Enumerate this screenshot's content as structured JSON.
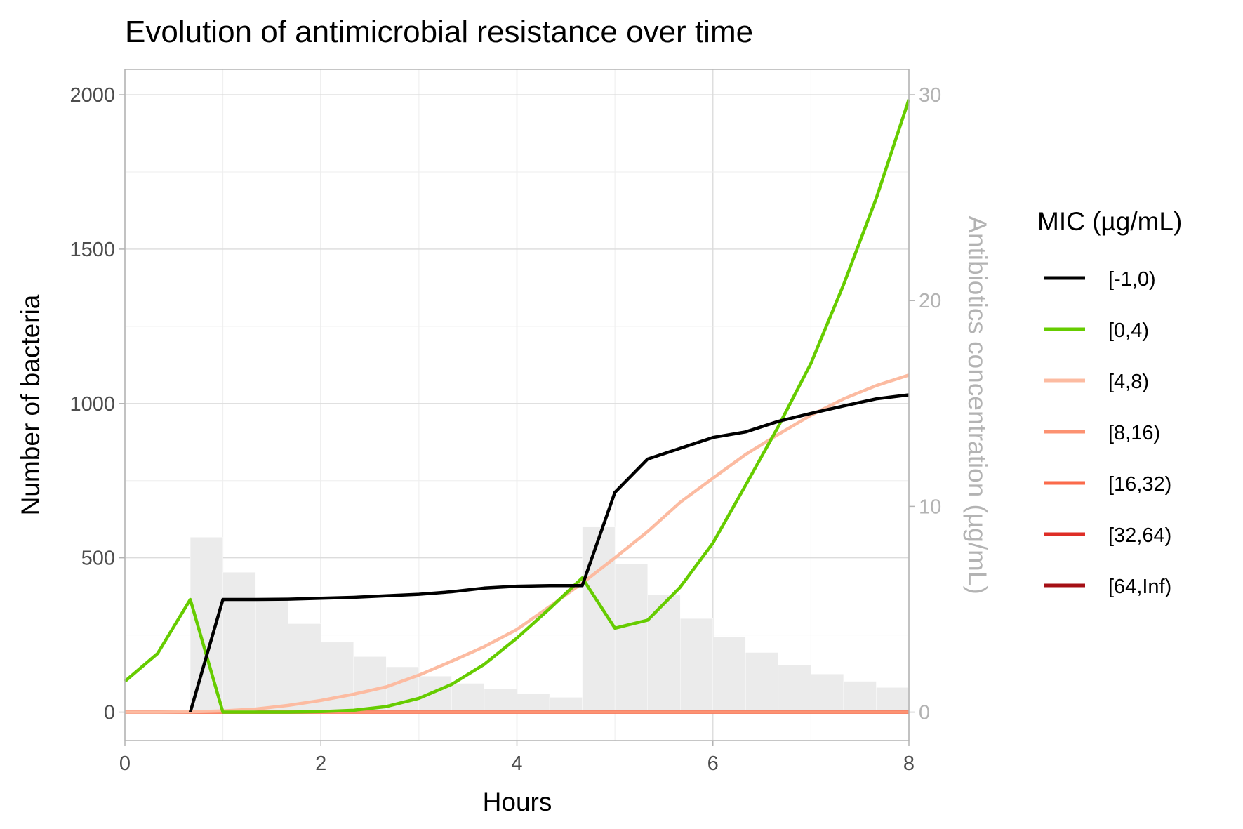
{
  "chart_data": {
    "type": "line",
    "title": "Evolution of antimicrobial resistance over time",
    "xlabel": "Hours",
    "ylabel": "Number of bacteria",
    "y2label": "Antibiotics concentration (µg/mL)",
    "xlim": [
      0,
      8
    ],
    "ylim": [
      -92,
      2082
    ],
    "y2lim": [
      -1.38,
      31.23
    ],
    "x_ticks": [
      0,
      2,
      4,
      6,
      8
    ],
    "y_ticks": [
      0,
      500,
      1000,
      1500,
      2000
    ],
    "y2_ticks": [
      0,
      10,
      20,
      30
    ],
    "grid": true,
    "legend_title": "MIC (µg/mL)",
    "legend_position": "right",
    "bar_color": "#ebebeb",
    "antibiotic_bars": {
      "width": 0.3333,
      "x": [
        0.8333,
        1.1667,
        1.5,
        1.8333,
        2.1667,
        2.5,
        2.8333,
        3.1667,
        3.5,
        3.8333,
        4.1667,
        4.5,
        4.8333,
        5.1667,
        5.5,
        5.8333,
        6.1667,
        6.5,
        6.8333,
        7.1667,
        7.5,
        7.8333
      ],
      "values": [
        8.5,
        6.8,
        5.5,
        4.3,
        3.4,
        2.7,
        2.2,
        1.75,
        1.4,
        1.12,
        0.9,
        0.72,
        9.0,
        7.2,
        5.7,
        4.55,
        3.65,
        2.9,
        2.3,
        1.85,
        1.5,
        1.2
      ]
    },
    "series": [
      {
        "name": "[-1,0)",
        "color": "#000000",
        "x": [
          0.6667,
          1,
          1.3333,
          1.6667,
          2,
          2.3333,
          2.6667,
          3,
          3.3333,
          3.6667,
          4,
          4.3333,
          4.6667,
          5,
          5.3333,
          5.6667,
          6,
          6.3333,
          6.6667,
          7,
          7.3333,
          7.6667,
          8
        ],
        "values": [
          0,
          365,
          365,
          366,
          369,
          372,
          377,
          382,
          390,
          402,
          408,
          410,
          410,
          712,
          820,
          855,
          890,
          908,
          942,
          968,
          992,
          1015,
          1028
        ]
      },
      {
        "name": "[0,4)",
        "color": "#66cc00",
        "x": [
          0,
          0.3333,
          0.6667,
          1,
          1.3333,
          1.6667,
          2,
          2.3333,
          2.6667,
          3,
          3.3333,
          3.6667,
          4,
          4.3333,
          4.6667,
          5,
          5.3333,
          5.6667,
          6,
          6.3333,
          6.6667,
          7,
          7.3333,
          7.6667,
          8
        ],
        "values": [
          100,
          190,
          365,
          0,
          0,
          0,
          2,
          6,
          18,
          45,
          90,
          155,
          240,
          335,
          435,
          272,
          298,
          405,
          548,
          735,
          925,
          1130,
          1385,
          1665,
          1985
        ]
      },
      {
        "name": "[4,8)",
        "color": "#fcbba1",
        "x": [
          0,
          0.3333,
          0.6667,
          1,
          1.3333,
          1.6667,
          2,
          2.3333,
          2.6667,
          3,
          3.3333,
          3.6667,
          4,
          4.3333,
          4.6667,
          5,
          5.3333,
          5.6667,
          6,
          6.3333,
          6.6667,
          7,
          7.3333,
          7.6667,
          8
        ],
        "values": [
          0,
          0,
          1,
          4,
          10,
          22,
          38,
          58,
          82,
          120,
          165,
          212,
          268,
          342,
          418,
          500,
          585,
          680,
          758,
          835,
          900,
          962,
          1015,
          1058,
          1092
        ]
      },
      {
        "name": "[8,16)",
        "color": "#fc9272",
        "x": [
          0,
          8
        ],
        "values": [
          0,
          0
        ]
      },
      {
        "name": "[16,32)",
        "color": "#fb6a4a",
        "x": [
          0,
          8
        ],
        "values": [
          0,
          0
        ]
      },
      {
        "name": "[32,64)",
        "color": "#de2d26",
        "x": [
          0,
          8
        ],
        "values": [
          0,
          0
        ]
      },
      {
        "name": "[64,Inf)",
        "color": "#a50f15",
        "x": [
          0,
          8
        ],
        "values": [
          0,
          0
        ]
      }
    ]
  }
}
